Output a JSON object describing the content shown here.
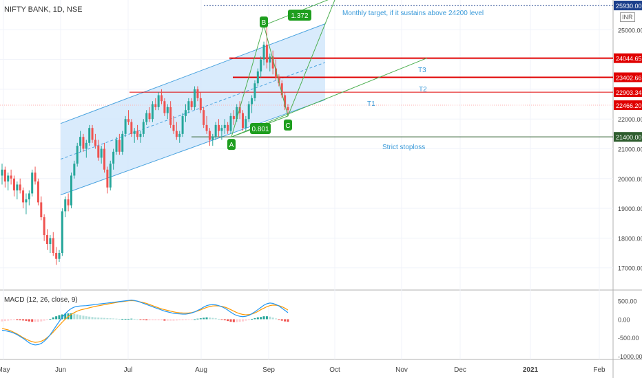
{
  "header": {
    "title": "NIFTY BANK, 1D, NSE",
    "currency": "INR"
  },
  "macd_label": "MACD (12, 26, close, 9)",
  "colors": {
    "up": "#26a69a",
    "down": "#ef5350",
    "channel": "#4aa3df",
    "channel_fill": "#cfe6fb",
    "pattern": "#4caf50",
    "target_red": "#e00000",
    "stop_green": "#2e5d2e",
    "annot_blue": "#3a9ad9",
    "macd_line": "#2196f3",
    "signal_line": "#ff9800",
    "badge": "#1e9e1e"
  },
  "chart_data": {
    "type": "candlestick",
    "y_axis_ticks": [
      "25000.00",
      "24000.00",
      "23000.00",
      "22000.00",
      "21000.00",
      "20000.00",
      "19000.00",
      "18000.00",
      "17000.00"
    ],
    "ylim": [
      16300,
      26000
    ],
    "x_axis_ticks": [
      "May",
      "Jun",
      "Jul",
      "Aug",
      "Sep",
      "Oct",
      "Nov",
      "Dec",
      "2021",
      "Feb"
    ],
    "price_labels": [
      {
        "value": 25930,
        "text": "25930.00",
        "color": "#1b3f8b"
      },
      {
        "value": 24044.65,
        "text": "24044.65",
        "color": "#e00000"
      },
      {
        "value": 23402.66,
        "text": "23402.66",
        "color": "#e00000"
      },
      {
        "value": 22903.34,
        "text": "22903.34",
        "color": "#e00000"
      },
      {
        "value": 22466.2,
        "text": "22466.20",
        "color": "#e00000"
      },
      {
        "value": 21400.0,
        "text": "21400.00",
        "color": "#2e5d2e"
      }
    ],
    "annotations": {
      "target_note": "Monthly target, if it sustains above 24200 level",
      "stoploss": "Strict stoploss",
      "t1": "T1",
      "t2": "T2",
      "t3": "T3",
      "ratio_high": "1.372",
      "ratio_low": "0.801",
      "point_a": "A",
      "point_b": "B",
      "point_c": "C"
    },
    "candles": [
      [
        20100,
        20500,
        19800,
        20300
      ],
      [
        20300,
        20400,
        19700,
        19900
      ],
      [
        19900,
        20200,
        19600,
        20100
      ],
      [
        20100,
        20300,
        19800,
        20000
      ],
      [
        20000,
        20100,
        19400,
        19600
      ],
      [
        19600,
        19900,
        19300,
        19800
      ],
      [
        19800,
        20000,
        19500,
        19600
      ],
      [
        19600,
        19700,
        19000,
        19200
      ],
      [
        19200,
        19500,
        18800,
        19300
      ],
      [
        19300,
        19600,
        19100,
        19500
      ],
      [
        19500,
        20300,
        19400,
        20200
      ],
      [
        20200,
        20400,
        19800,
        19900
      ],
      [
        19900,
        20000,
        19100,
        19200
      ],
      [
        19200,
        19400,
        18600,
        18700
      ],
      [
        18700,
        18800,
        17900,
        18100
      ],
      [
        18100,
        18300,
        17600,
        17800
      ],
      [
        17800,
        18100,
        17500,
        18000
      ],
      [
        18000,
        18200,
        17400,
        17500
      ],
      [
        17500,
        17700,
        17100,
        17300
      ],
      [
        17300,
        17600,
        17200,
        17500
      ],
      [
        17500,
        19000,
        17400,
        18900
      ],
      [
        18900,
        19400,
        18700,
        19300
      ],
      [
        19300,
        19500,
        18900,
        19100
      ],
      [
        19100,
        20200,
        19000,
        20100
      ],
      [
        20100,
        20600,
        20000,
        20500
      ],
      [
        20500,
        21200,
        20400,
        21100
      ],
      [
        21100,
        21600,
        20900,
        21400
      ],
      [
        21400,
        21500,
        20900,
        21000
      ],
      [
        21000,
        21300,
        20700,
        21200
      ],
      [
        21200,
        21800,
        21100,
        21700
      ],
      [
        21700,
        21800,
        21200,
        21300
      ],
      [
        21300,
        21500,
        21000,
        21100
      ],
      [
        21100,
        21300,
        20600,
        20700
      ],
      [
        20700,
        21100,
        20500,
        21000
      ],
      [
        21000,
        21200,
        20200,
        20300
      ],
      [
        20300,
        20400,
        19500,
        19700
      ],
      [
        19700,
        20600,
        19600,
        20500
      ],
      [
        20500,
        21000,
        20300,
        20900
      ],
      [
        20900,
        21400,
        20800,
        21300
      ],
      [
        21300,
        21500,
        20800,
        20900
      ],
      [
        20900,
        21600,
        20800,
        21500
      ],
      [
        21500,
        22100,
        21400,
        22000
      ],
      [
        22000,
        22300,
        21800,
        21900
      ],
      [
        21900,
        22000,
        21400,
        21500
      ],
      [
        21500,
        21700,
        21200,
        21600
      ],
      [
        21600,
        21800,
        21300,
        21400
      ],
      [
        21400,
        21600,
        21200,
        21500
      ],
      [
        21500,
        22000,
        21400,
        21900
      ],
      [
        21900,
        22300,
        21800,
        22200
      ],
      [
        22200,
        22400,
        21900,
        22000
      ],
      [
        22000,
        22600,
        21900,
        22500
      ],
      [
        22500,
        22700,
        22300,
        22400
      ],
      [
        22400,
        22900,
        22300,
        22800
      ],
      [
        22800,
        23000,
        22500,
        22600
      ],
      [
        22600,
        22700,
        22100,
        22200
      ],
      [
        22200,
        22500,
        22000,
        22400
      ],
      [
        22400,
        22600,
        21700,
        21800
      ],
      [
        21800,
        22100,
        21500,
        21600
      ],
      [
        21600,
        21900,
        21300,
        21400
      ],
      [
        21400,
        21600,
        21200,
        21500
      ],
      [
        21500,
        22200,
        21400,
        22100
      ],
      [
        22100,
        22500,
        21900,
        22300
      ],
      [
        22300,
        22700,
        22200,
        22600
      ],
      [
        22600,
        22700,
        22300,
        22400
      ],
      [
        22400,
        23100,
        22300,
        23000
      ],
      [
        23000,
        23100,
        22600,
        22700
      ],
      [
        22700,
        22900,
        22200,
        22300
      ],
      [
        22300,
        22400,
        21700,
        21800
      ],
      [
        21800,
        22100,
        21500,
        21600
      ],
      [
        21600,
        21700,
        21100,
        21300
      ],
      [
        21300,
        21500,
        21100,
        21400
      ],
      [
        21400,
        21900,
        21300,
        21800
      ],
      [
        21800,
        22000,
        21400,
        21600
      ],
      [
        21600,
        21800,
        21300,
        21700
      ],
      [
        21700,
        22000,
        21500,
        21800
      ],
      [
        21800,
        21900,
        21500,
        21600
      ],
      [
        21600,
        22200,
        21500,
        22100
      ],
      [
        22100,
        22300,
        21800,
        22000
      ],
      [
        22000,
        22500,
        21900,
        22400
      ],
      [
        22400,
        22600,
        22000,
        22200
      ],
      [
        22200,
        22300,
        21600,
        21700
      ],
      [
        21700,
        22100,
        21600,
        22000
      ],
      [
        22000,
        22600,
        21900,
        22500
      ],
      [
        22500,
        22800,
        22200,
        22700
      ],
      [
        22700,
        23300,
        22600,
        23200
      ],
      [
        23200,
        23700,
        23100,
        23600
      ],
      [
        23600,
        24100,
        23400,
        24000
      ],
      [
        24000,
        24600,
        23800,
        24500
      ],
      [
        24500,
        25100,
        23700,
        23900
      ],
      [
        23900,
        24200,
        23600,
        24100
      ],
      [
        24100,
        24300,
        23500,
        23700
      ],
      [
        23700,
        24000,
        23300,
        23400
      ],
      [
        23400,
        23500,
        23100,
        23200
      ],
      [
        23200,
        23300,
        22700,
        22800
      ],
      [
        22800,
        22900,
        22300,
        22400
      ],
      [
        22400,
        22500,
        22100,
        22300
      ]
    ],
    "channel": {
      "lower": [
        [
          88,
          19450
        ],
        [
          472,
          22650
        ]
      ],
      "upper": [
        [
          88,
          21850
        ],
        [
          472,
          25200
        ]
      ],
      "mid": [
        [
          88,
          20650
        ],
        [
          472,
          23900
        ]
      ]
    },
    "macd": {
      "ylim": [
        -1000,
        700
      ],
      "y_axis_ticks": [
        "500.00",
        "0.00",
        "-500.00",
        "-1000.00"
      ],
      "macd_line": [
        -300,
        -310,
        -330,
        -350,
        -380,
        -420,
        -470,
        -520,
        -580,
        -640,
        -680,
        -700,
        -690,
        -660,
        -600,
        -520,
        -420,
        -300,
        -180,
        -60,
        50,
        150,
        230,
        290,
        330,
        350,
        360,
        365,
        370,
        380,
        390,
        400,
        410,
        420,
        430,
        440,
        450,
        460,
        470,
        480,
        490,
        500,
        510,
        520,
        510,
        490,
        460,
        430,
        400,
        370,
        340,
        310,
        280,
        250,
        220,
        200,
        180,
        160,
        150,
        145,
        140,
        140,
        150,
        170,
        200,
        240,
        280,
        330,
        370,
        390,
        395,
        390,
        370,
        340,
        300,
        250,
        190,
        140,
        100,
        80,
        70,
        80,
        100,
        150,
        200,
        260,
        320,
        380,
        420,
        440,
        430,
        400,
        360,
        300,
        240,
        180
      ],
      "signal_line": [
        -250,
        -270,
        -290,
        -320,
        -360,
        -400,
        -450,
        -500,
        -540,
        -580,
        -610,
        -630,
        -620,
        -600,
        -560,
        -500,
        -430,
        -350,
        -260,
        -170,
        -80,
        0,
        70,
        130,
        180,
        220,
        250,
        270,
        290,
        310,
        330,
        350,
        365,
        380,
        395,
        410,
        425,
        440,
        455,
        470,
        480,
        490,
        500,
        505,
        500,
        490,
        470,
        450,
        430,
        400,
        370,
        340,
        310,
        280,
        260,
        240,
        220,
        200,
        185,
        175,
        170,
        168,
        170,
        180,
        200,
        225,
        255,
        290,
        320,
        345,
        360,
        365,
        360,
        350,
        330,
        300,
        260,
        220,
        180,
        150,
        130,
        120,
        125,
        140,
        170,
        210,
        260,
        300,
        340,
        370,
        385,
        380,
        370,
        340,
        300,
        250
      ],
      "histogram": [
        -60,
        -50,
        -40,
        -30,
        -20,
        -25,
        -30,
        -35,
        -45,
        -60,
        -70,
        -70,
        -70,
        -60,
        -40,
        -20,
        10,
        50,
        80,
        110,
        130,
        150,
        160,
        160,
        150,
        130,
        110,
        95,
        80,
        70,
        60,
        50,
        45,
        40,
        35,
        30,
        25,
        20,
        15,
        10,
        10,
        10,
        10,
        15,
        10,
        0,
        -10,
        -20,
        -30,
        -30,
        -30,
        -30,
        -30,
        -30,
        -40,
        -40,
        -40,
        -40,
        -35,
        -30,
        -30,
        -28,
        -20,
        -10,
        0,
        15,
        25,
        40,
        50,
        45,
        35,
        25,
        10,
        -10,
        -30,
        -50,
        -70,
        -80,
        -80,
        -70,
        -60,
        -40,
        -25,
        10,
        30,
        50,
        60,
        80,
        80,
        70,
        45,
        20,
        -10,
        -40,
        -60,
        -70
      ]
    }
  }
}
